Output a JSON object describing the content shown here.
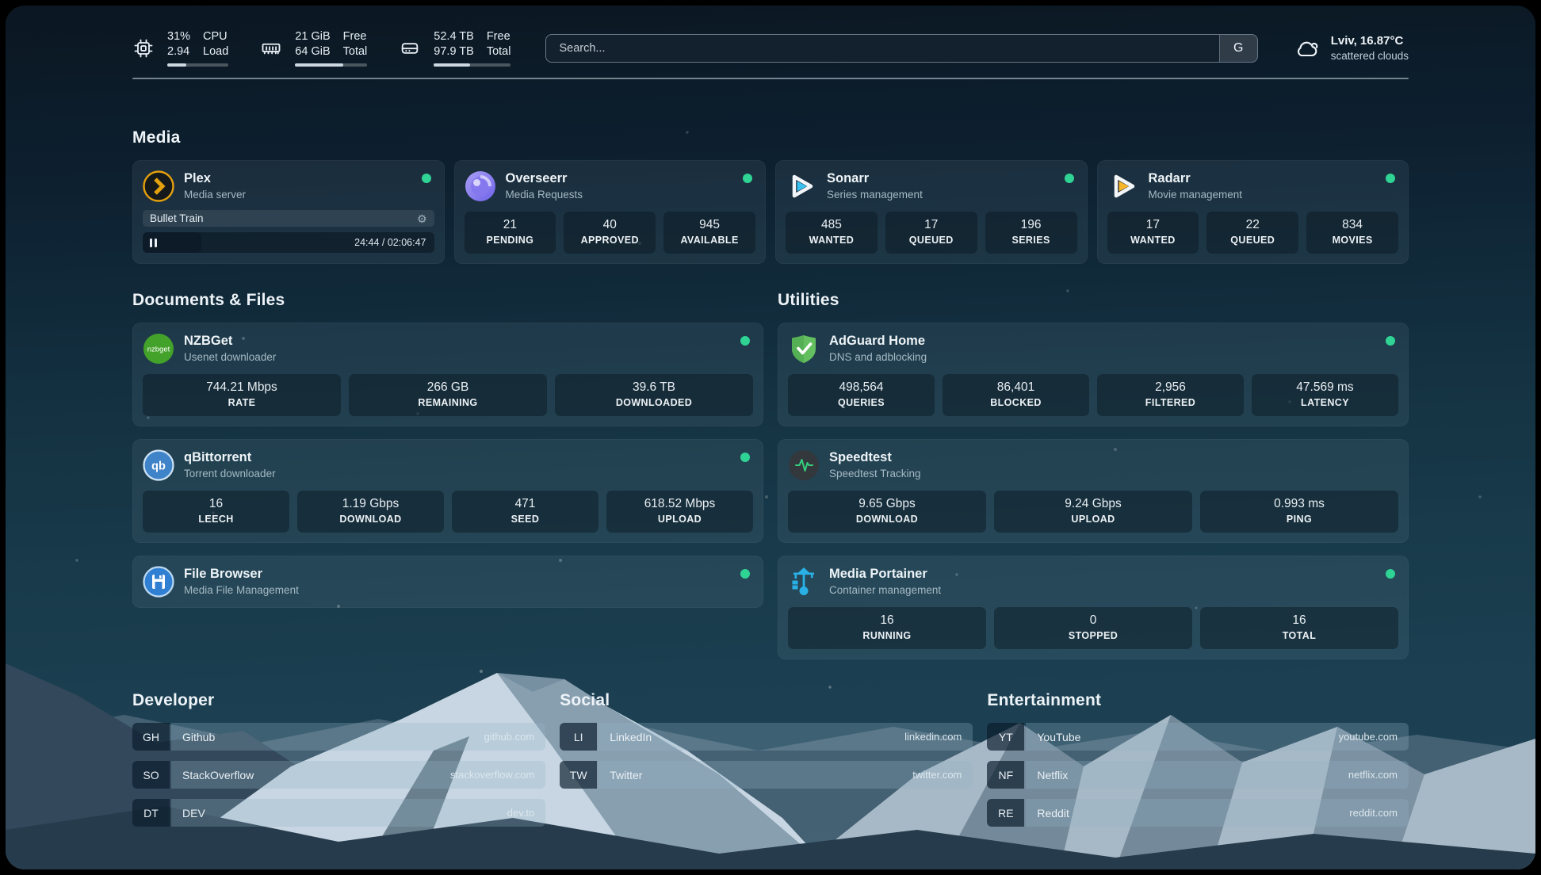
{
  "topbar": {
    "metrics": [
      {
        "icon": "cpu-icon",
        "value_top": "31%",
        "value_bottom": "2.94",
        "label_top": "CPU",
        "label_bottom": "Load",
        "progress": 31
      },
      {
        "icon": "memory-icon",
        "value_top": "21 GiB",
        "value_bottom": "64 GiB",
        "label_top": "Free",
        "label_bottom": "Total",
        "progress": 67
      },
      {
        "icon": "disk-icon",
        "value_top": "52.4 TB",
        "value_bottom": "97.9 TB",
        "label_top": "Free",
        "label_bottom": "Total",
        "progress": 47
      }
    ],
    "search": {
      "placeholder": "Search...",
      "provider_button": "G"
    },
    "weather": {
      "location": "Lviv, 16.87°C",
      "condition": "scattered clouds"
    }
  },
  "media": {
    "title": "Media",
    "plex": {
      "name": "Plex",
      "description": "Media server",
      "online": true,
      "now_playing": {
        "title": "Bullet Train",
        "time": "24:44 / 02:06:47",
        "progress_percent": 20
      }
    },
    "overseerr": {
      "name": "Overseerr",
      "description": "Media Requests",
      "online": true,
      "stats": [
        {
          "value": "21",
          "label": "PENDING"
        },
        {
          "value": "40",
          "label": "APPROVED"
        },
        {
          "value": "945",
          "label": "AVAILABLE"
        }
      ]
    },
    "sonarr": {
      "name": "Sonarr",
      "description": "Series management",
      "online": true,
      "stats": [
        {
          "value": "485",
          "label": "WANTED"
        },
        {
          "value": "17",
          "label": "QUEUED"
        },
        {
          "value": "196",
          "label": "SERIES"
        }
      ]
    },
    "radarr": {
      "name": "Radarr",
      "description": "Movie management",
      "online": true,
      "stats": [
        {
          "value": "17",
          "label": "WANTED"
        },
        {
          "value": "22",
          "label": "QUEUED"
        },
        {
          "value": "834",
          "label": "MOVIES"
        }
      ]
    }
  },
  "documents": {
    "title": "Documents & Files",
    "nzbget": {
      "name": "NZBGet",
      "description": "Usenet downloader",
      "online": true,
      "stats": [
        {
          "value": "744.21 Mbps",
          "label": "RATE"
        },
        {
          "value": "266 GB",
          "label": "REMAINING"
        },
        {
          "value": "39.6 TB",
          "label": "DOWNLOADED"
        }
      ]
    },
    "qbittorrent": {
      "name": "qBittorrent",
      "description": "Torrent downloader",
      "online": true,
      "stats": [
        {
          "value": "16",
          "label": "LEECH"
        },
        {
          "value": "1.19 Gbps",
          "label": "DOWNLOAD"
        },
        {
          "value": "471",
          "label": "SEED"
        },
        {
          "value": "618.52 Mbps",
          "label": "UPLOAD"
        }
      ]
    },
    "filebrowser": {
      "name": "File Browser",
      "description": "Media File Management",
      "online": true
    }
  },
  "utilities": {
    "title": "Utilities",
    "adguard": {
      "name": "AdGuard Home",
      "description": "DNS and adblocking",
      "online": true,
      "stats": [
        {
          "value": "498,564",
          "label": "QUERIES"
        },
        {
          "value": "86,401",
          "label": "BLOCKED"
        },
        {
          "value": "2,956",
          "label": "FILTERED"
        },
        {
          "value": "47.569 ms",
          "label": "LATENCY"
        }
      ]
    },
    "speedtest": {
      "name": "Speedtest",
      "description": "Speedtest Tracking",
      "stats": [
        {
          "value": "9.65 Gbps",
          "label": "DOWNLOAD"
        },
        {
          "value": "9.24 Gbps",
          "label": "UPLOAD"
        },
        {
          "value": "0.993 ms",
          "label": "PING"
        }
      ]
    },
    "portainer": {
      "name": "Media Portainer",
      "description": "Container management",
      "online": true,
      "stats": [
        {
          "value": "16",
          "label": "RUNNING"
        },
        {
          "value": "0",
          "label": "STOPPED"
        },
        {
          "value": "16",
          "label": "TOTAL"
        }
      ]
    }
  },
  "bookmarks": [
    {
      "title": "Developer",
      "items": [
        {
          "abbr": "GH",
          "name": "Github",
          "domain": "github.com"
        },
        {
          "abbr": "SO",
          "name": "StackOverflow",
          "domain": "stackoverflow.com"
        },
        {
          "abbr": "DT",
          "name": "DEV",
          "domain": "dev.to"
        }
      ]
    },
    {
      "title": "Social",
      "items": [
        {
          "abbr": "LI",
          "name": "LinkedIn",
          "domain": "linkedin.com"
        },
        {
          "abbr": "TW",
          "name": "Twitter",
          "domain": "twitter.com"
        }
      ]
    },
    {
      "title": "Entertainment",
      "items": [
        {
          "abbr": "YT",
          "name": "YouTube",
          "domain": "youtube.com"
        },
        {
          "abbr": "NF",
          "name": "Netflix",
          "domain": "netflix.com"
        },
        {
          "abbr": "RE",
          "name": "Reddit",
          "domain": "reddit.com"
        }
      ]
    }
  ],
  "colors": {
    "status_online": "#2fd394",
    "plex": "#e5a00d",
    "sonarr": "#35c5f4",
    "radarr": "#f7b52c",
    "adguard": "#63bf60",
    "portainer": "#29b1e6",
    "qbittorrent": "#3f83c9",
    "filebrowser": "#2f7fd3",
    "nzbget": "#43a22a",
    "overseerr": "#7b67ee",
    "speedtest_pulse": "#35d07f"
  }
}
